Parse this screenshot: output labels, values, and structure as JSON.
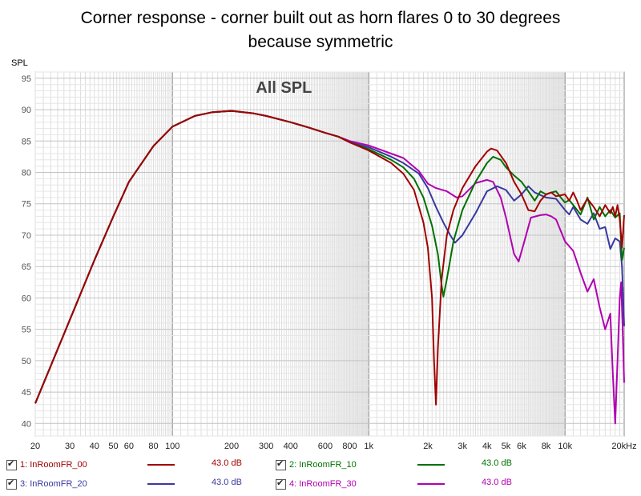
{
  "title_line1": "Corner response - corner built out as horn flares 0 to 30 degrees",
  "title_line2": "because symmetric",
  "chart_data": {
    "type": "line",
    "title": "All SPL",
    "ylabel": "SPL",
    "xlabel": "",
    "x_scale": "log",
    "xlim": [
      20,
      20000
    ],
    "ylim": [
      38,
      96
    ],
    "grid": true,
    "x_ticks": [
      {
        "v": 20,
        "l": "20"
      },
      {
        "v": 30,
        "l": "30"
      },
      {
        "v": 40,
        "l": "40"
      },
      {
        "v": 50,
        "l": "50"
      },
      {
        "v": 60,
        "l": "60"
      },
      {
        "v": 80,
        "l": "80"
      },
      {
        "v": 100,
        "l": "100"
      },
      {
        "v": 200,
        "l": "200"
      },
      {
        "v": 300,
        "l": "300"
      },
      {
        "v": 400,
        "l": "400"
      },
      {
        "v": 600,
        "l": "600"
      },
      {
        "v": 800,
        "l": "800"
      },
      {
        "v": 1000,
        "l": "1k"
      },
      {
        "v": 2000,
        "l": "2k"
      },
      {
        "v": 3000,
        "l": "3k"
      },
      {
        "v": 4000,
        "l": "4k"
      },
      {
        "v": 5000,
        "l": "5k"
      },
      {
        "v": 6000,
        "l": "6k"
      },
      {
        "v": 8000,
        "l": "8k"
      },
      {
        "v": 10000,
        "l": "10k"
      },
      {
        "v": 20000,
        "l": "20kHz"
      }
    ],
    "y_ticks": [
      40,
      45,
      50,
      55,
      60,
      65,
      70,
      75,
      80,
      85,
      90,
      95
    ],
    "series": [
      {
        "name": "1: InRoomFR_00",
        "color": "#a00000",
        "offset": "43.0 dB",
        "points": [
          [
            20,
            43.2
          ],
          [
            30,
            56.5
          ],
          [
            40,
            66
          ],
          [
            50,
            73
          ],
          [
            60,
            78.5
          ],
          [
            80,
            84.2
          ],
          [
            100,
            87.3
          ],
          [
            130,
            89
          ],
          [
            160,
            89.6
          ],
          [
            200,
            89.8
          ],
          [
            260,
            89.4
          ],
          [
            300,
            89
          ],
          [
            400,
            88
          ],
          [
            500,
            87.1
          ],
          [
            600,
            86.3
          ],
          [
            700,
            85.7
          ],
          [
            800,
            84.8
          ],
          [
            1000,
            83.5
          ],
          [
            1300,
            81.5
          ],
          [
            1500,
            79.8
          ],
          [
            1700,
            77.2
          ],
          [
            1900,
            72
          ],
          [
            2000,
            68
          ],
          [
            2100,
            60
          ],
          [
            2150,
            50
          ],
          [
            2200,
            43
          ],
          [
            2250,
            52
          ],
          [
            2350,
            63
          ],
          [
            2500,
            70
          ],
          [
            2700,
            74
          ],
          [
            3000,
            77.5
          ],
          [
            3500,
            81
          ],
          [
            4000,
            83.3
          ],
          [
            4200,
            83.8
          ],
          [
            4500,
            83.5
          ],
          [
            5000,
            81.5
          ],
          [
            5500,
            78.5
          ],
          [
            6000,
            76.5
          ],
          [
            6500,
            74
          ],
          [
            7000,
            73.8
          ],
          [
            7500,
            75.5
          ],
          [
            8000,
            76.5
          ],
          [
            8500,
            76.8
          ],
          [
            9000,
            76.2
          ],
          [
            10000,
            76.5
          ],
          [
            10500,
            75.5
          ],
          [
            11000,
            76.8
          ],
          [
            11500,
            75.5
          ],
          [
            12000,
            74
          ],
          [
            13000,
            75.8
          ],
          [
            14000,
            74.5
          ],
          [
            15000,
            73
          ],
          [
            16000,
            74.8
          ],
          [
            17000,
            73.5
          ],
          [
            17500,
            74.5
          ],
          [
            18000,
            73
          ],
          [
            18500,
            74.8
          ],
          [
            19000,
            72.5
          ],
          [
            19500,
            68
          ],
          [
            20000,
            73.2
          ]
        ]
      },
      {
        "name": "2: InRoomFR_10",
        "color": "#007000",
        "offset": "43.0 dB",
        "points": [
          [
            20,
            43.2
          ],
          [
            30,
            56.5
          ],
          [
            40,
            66
          ],
          [
            50,
            73
          ],
          [
            60,
            78.5
          ],
          [
            80,
            84.2
          ],
          [
            100,
            87.3
          ],
          [
            130,
            89
          ],
          [
            160,
            89.6
          ],
          [
            200,
            89.8
          ],
          [
            260,
            89.4
          ],
          [
            300,
            89
          ],
          [
            400,
            88
          ],
          [
            500,
            87.1
          ],
          [
            600,
            86.3
          ],
          [
            700,
            85.7
          ],
          [
            800,
            84.8
          ],
          [
            1000,
            83.7
          ],
          [
            1300,
            82
          ],
          [
            1500,
            80.8
          ],
          [
            1700,
            79
          ],
          [
            1900,
            76
          ],
          [
            2100,
            71.5
          ],
          [
            2250,
            67
          ],
          [
            2350,
            62
          ],
          [
            2400,
            60.2
          ],
          [
            2500,
            63
          ],
          [
            2700,
            69
          ],
          [
            3000,
            74
          ],
          [
            3500,
            78.5
          ],
          [
            4000,
            81.5
          ],
          [
            4300,
            82.5
          ],
          [
            4700,
            82
          ],
          [
            5000,
            80.8
          ],
          [
            5500,
            79.5
          ],
          [
            6000,
            78.5
          ],
          [
            6500,
            77
          ],
          [
            7000,
            75.5
          ],
          [
            7500,
            77
          ],
          [
            8000,
            76.5
          ],
          [
            8500,
            76.8
          ],
          [
            9000,
            77
          ],
          [
            9500,
            76
          ],
          [
            10000,
            75.2
          ],
          [
            10500,
            75.6
          ],
          [
            11000,
            74.8
          ],
          [
            12000,
            73.3
          ],
          [
            13000,
            76
          ],
          [
            14000,
            72.5
          ],
          [
            15000,
            74.5
          ],
          [
            16000,
            73
          ],
          [
            17000,
            74
          ],
          [
            18000,
            72.8
          ],
          [
            19000,
            73.5
          ],
          [
            19500,
            66
          ],
          [
            20000,
            68
          ]
        ]
      },
      {
        "name": "3: InRoomFR_20",
        "color": "#3838a0",
        "offset": "43.0 dB",
        "points": [
          [
            20,
            43.2
          ],
          [
            30,
            56.5
          ],
          [
            40,
            66
          ],
          [
            50,
            73
          ],
          [
            60,
            78.5
          ],
          [
            80,
            84.2
          ],
          [
            100,
            87.3
          ],
          [
            130,
            89
          ],
          [
            160,
            89.6
          ],
          [
            200,
            89.8
          ],
          [
            260,
            89.4
          ],
          [
            300,
            89
          ],
          [
            400,
            88
          ],
          [
            500,
            87.1
          ],
          [
            600,
            86.3
          ],
          [
            700,
            85.7
          ],
          [
            800,
            84.8
          ],
          [
            1000,
            84
          ],
          [
            1300,
            82.5
          ],
          [
            1500,
            81.5
          ],
          [
            1800,
            79.8
          ],
          [
            2000,
            77.5
          ],
          [
            2200,
            74.5
          ],
          [
            2400,
            72
          ],
          [
            2600,
            70
          ],
          [
            2750,
            68.8
          ],
          [
            3000,
            70
          ],
          [
            3500,
            73.5
          ],
          [
            4000,
            77
          ],
          [
            4500,
            77.8
          ],
          [
            5000,
            77.2
          ],
          [
            5500,
            75.5
          ],
          [
            6000,
            76.5
          ],
          [
            6500,
            77.8
          ],
          [
            7000,
            76.8
          ],
          [
            8000,
            76
          ],
          [
            9000,
            75.8
          ],
          [
            10000,
            74
          ],
          [
            10500,
            73.3
          ],
          [
            11000,
            74.5
          ],
          [
            12000,
            72.5
          ],
          [
            13000,
            71.8
          ],
          [
            14000,
            73.5
          ],
          [
            15000,
            71
          ],
          [
            16000,
            71.3
          ],
          [
            17000,
            67.8
          ],
          [
            18000,
            69.5
          ],
          [
            19000,
            69
          ],
          [
            19500,
            65
          ],
          [
            20000,
            55.5
          ]
        ]
      },
      {
        "name": "4: InRoomFR_30",
        "color": "#b000b0",
        "offset": "43.0 dB",
        "points": [
          [
            20,
            43.2
          ],
          [
            30,
            56.5
          ],
          [
            40,
            66
          ],
          [
            50,
            73
          ],
          [
            60,
            78.5
          ],
          [
            80,
            84.2
          ],
          [
            100,
            87.3
          ],
          [
            130,
            89
          ],
          [
            160,
            89.6
          ],
          [
            200,
            89.8
          ],
          [
            260,
            89.4
          ],
          [
            300,
            89
          ],
          [
            400,
            88
          ],
          [
            500,
            87.1
          ],
          [
            600,
            86.3
          ],
          [
            700,
            85.7
          ],
          [
            800,
            85
          ],
          [
            1000,
            84.3
          ],
          [
            1300,
            83
          ],
          [
            1500,
            82.3
          ],
          [
            1800,
            80.2
          ],
          [
            2000,
            78.2
          ],
          [
            2200,
            77.5
          ],
          [
            2500,
            77
          ],
          [
            2800,
            76
          ],
          [
            3000,
            76.2
          ],
          [
            3500,
            78.3
          ],
          [
            4000,
            78.8
          ],
          [
            4300,
            78.5
          ],
          [
            4700,
            76
          ],
          [
            5000,
            72.8
          ],
          [
            5500,
            67
          ],
          [
            5800,
            65.8
          ],
          [
            6200,
            69
          ],
          [
            6700,
            72.8
          ],
          [
            7500,
            73.2
          ],
          [
            8000,
            73.3
          ],
          [
            8500,
            73
          ],
          [
            9000,
            72.5
          ],
          [
            10000,
            69
          ],
          [
            11000,
            67.5
          ],
          [
            12000,
            64
          ],
          [
            13000,
            61
          ],
          [
            14000,
            63
          ],
          [
            15000,
            58.5
          ],
          [
            16000,
            55
          ],
          [
            17000,
            57.5
          ],
          [
            17500,
            48
          ],
          [
            18000,
            40
          ],
          [
            18500,
            50
          ],
          [
            19000,
            60
          ],
          [
            19300,
            62.5
          ],
          [
            19600,
            56
          ],
          [
            20000,
            46.5
          ]
        ]
      }
    ]
  }
}
